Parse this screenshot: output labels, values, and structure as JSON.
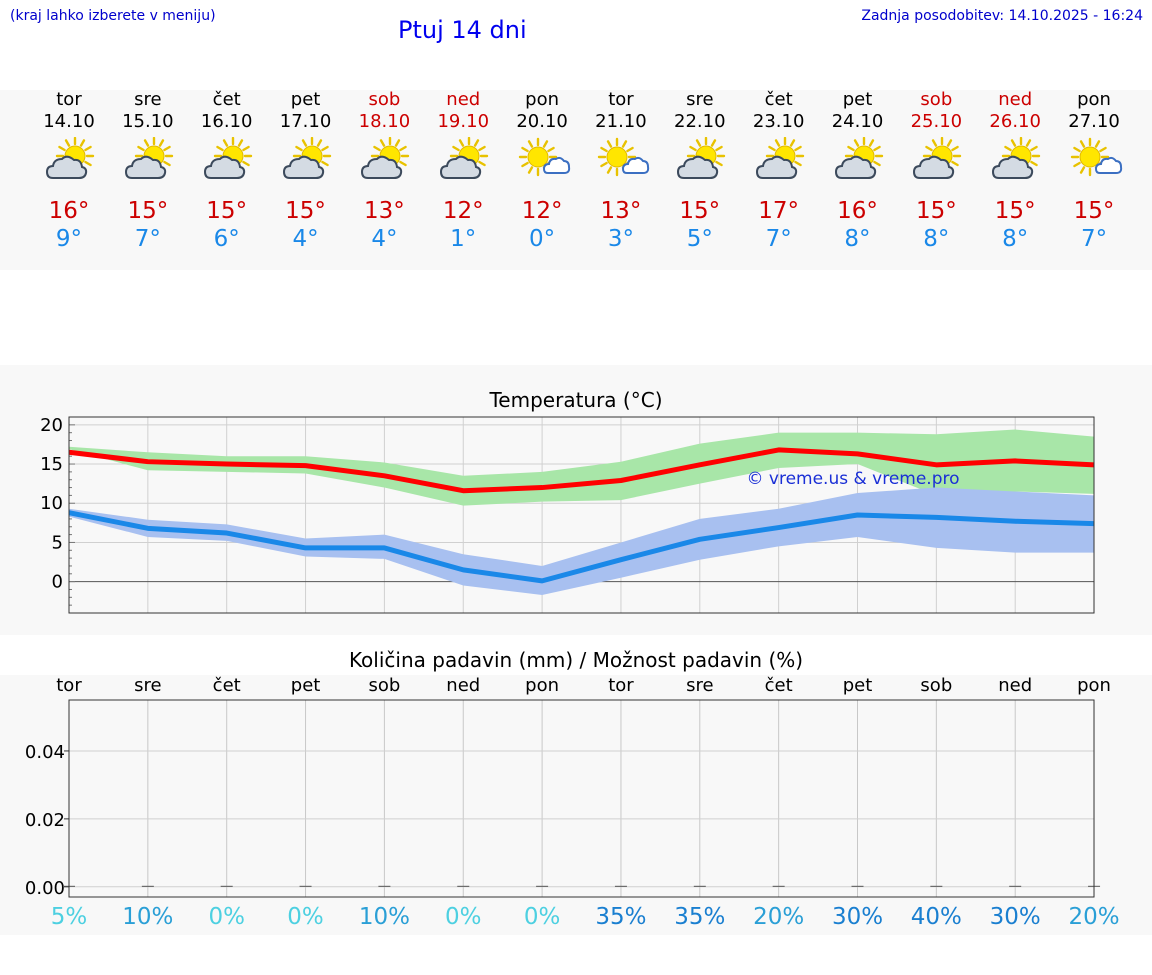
{
  "header": {
    "hint": "(kraj lahko izberete v meniju)",
    "title": "Ptuj 14 dni",
    "updated": "Zadnja posodobitev: 14.10.2025 - 16:24"
  },
  "forecast": [
    {
      "day": "tor",
      "date": "14.10",
      "weekend": false,
      "icon": "sun-cloud-icon",
      "max": "16°",
      "min": "9°"
    },
    {
      "day": "sre",
      "date": "15.10",
      "weekend": false,
      "icon": "sun-cloud-icon",
      "max": "15°",
      "min": "7°"
    },
    {
      "day": "čet",
      "date": "16.10",
      "weekend": false,
      "icon": "sun-cloud-icon",
      "max": "15°",
      "min": "6°"
    },
    {
      "day": "pet",
      "date": "17.10",
      "weekend": false,
      "icon": "sun-cloud-icon",
      "max": "15°",
      "min": "4°"
    },
    {
      "day": "sob",
      "date": "18.10",
      "weekend": true,
      "icon": "sun-cloud-icon",
      "max": "13°",
      "min": "4°"
    },
    {
      "day": "ned",
      "date": "19.10",
      "weekend": true,
      "icon": "sun-cloud-icon",
      "max": "12°",
      "min": "1°"
    },
    {
      "day": "pon",
      "date": "20.10",
      "weekend": false,
      "icon": "sun-small-cloud-icon",
      "max": "12°",
      "min": "0°"
    },
    {
      "day": "tor",
      "date": "21.10",
      "weekend": false,
      "icon": "sun-small-cloud-icon",
      "max": "13°",
      "min": "3°"
    },
    {
      "day": "sre",
      "date": "22.10",
      "weekend": false,
      "icon": "sun-cloud-icon",
      "max": "15°",
      "min": "5°"
    },
    {
      "day": "čet",
      "date": "23.10",
      "weekend": false,
      "icon": "sun-cloud-icon",
      "max": "17°",
      "min": "7°"
    },
    {
      "day": "pet",
      "date": "24.10",
      "weekend": false,
      "icon": "sun-cloud-icon",
      "max": "16°",
      "min": "8°"
    },
    {
      "day": "sob",
      "date": "25.10",
      "weekend": true,
      "icon": "sun-cloud-icon",
      "max": "15°",
      "min": "8°"
    },
    {
      "day": "ned",
      "date": "26.10",
      "weekend": true,
      "icon": "sun-cloud-icon",
      "max": "15°",
      "min": "8°"
    },
    {
      "day": "pon",
      "date": "27.10",
      "weekend": false,
      "icon": "sun-small-cloud-icon",
      "max": "15°",
      "min": "7°"
    }
  ],
  "colors": {
    "max_line": "#ff0000",
    "max_band": "#a8e6a8",
    "min_line": "#1a88e8",
    "min_band": "#a8c0f0",
    "pct_light": "#4dd0e1",
    "pct_mid": "#2a9fd6",
    "pct_dark": "#1a7fd0"
  },
  "chart_data": [
    {
      "type": "line",
      "title": "Temperatura (°C)",
      "watermark": "© vreme.us & vreme.pro",
      "x": [
        0,
        1,
        2,
        3,
        4,
        5,
        6,
        7,
        8,
        9,
        10,
        11,
        12,
        13
      ],
      "ylim": [
        -4,
        21
      ],
      "yticks": [
        0,
        5,
        10,
        15,
        20
      ],
      "series": [
        {
          "name": "max",
          "values": [
            16.5,
            15.3,
            15.0,
            14.8,
            13.5,
            11.6,
            12.0,
            12.9,
            14.9,
            16.8,
            16.3,
            14.9,
            15.4,
            14.9
          ],
          "band_low": [
            16.9,
            14.2,
            14.0,
            13.8,
            12.0,
            9.7,
            10.2,
            10.4,
            12.5,
            14.5,
            15.0,
            11.0,
            11.5,
            11.2
          ],
          "band_high": [
            17.2,
            16.5,
            16.0,
            16.0,
            15.2,
            13.5,
            14.0,
            15.3,
            17.6,
            19.0,
            19.0,
            18.8,
            19.4,
            18.5
          ]
        },
        {
          "name": "min",
          "values": [
            8.8,
            6.8,
            6.2,
            4.3,
            4.3,
            1.5,
            0.1,
            2.8,
            5.4,
            6.9,
            8.5,
            8.2,
            7.7,
            7.4
          ],
          "band_low": [
            8.3,
            5.7,
            5.2,
            3.2,
            2.9,
            -0.5,
            -1.7,
            0.5,
            2.8,
            4.5,
            5.7,
            4.3,
            3.7,
            3.7
          ],
          "band_high": [
            9.3,
            7.9,
            7.3,
            5.5,
            6.0,
            3.5,
            2.0,
            5.0,
            8.0,
            9.3,
            11.3,
            12.0,
            11.5,
            11.0
          ]
        }
      ]
    },
    {
      "type": "bar",
      "title": "Količina padavin (mm) / Možnost padavin (%)",
      "categories": [
        "tor",
        "sre",
        "čet",
        "pet",
        "sob",
        "ned",
        "pon",
        "tor",
        "sre",
        "čet",
        "pet",
        "sob",
        "ned",
        "pon"
      ],
      "values": [
        0,
        0,
        0,
        0,
        0,
        0,
        0,
        0,
        0,
        0,
        0,
        0,
        0,
        0
      ],
      "ylim": [
        -0.003,
        0.055
      ],
      "yticks": [
        "0.00",
        "0.02",
        "0.04"
      ],
      "ytick_values": [
        0,
        0.02,
        0.04
      ],
      "chance": [
        "5%",
        "10%",
        "0%",
        "0%",
        "10%",
        "0%",
        "0%",
        "35%",
        "35%",
        "20%",
        "30%",
        "40%",
        "30%",
        "20%"
      ],
      "chance_values": [
        5,
        10,
        0,
        0,
        10,
        0,
        0,
        35,
        35,
        20,
        30,
        40,
        30,
        20
      ]
    }
  ]
}
